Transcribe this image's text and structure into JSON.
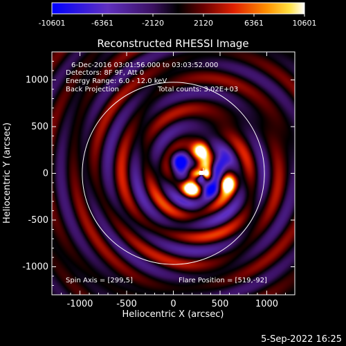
{
  "chart_data": {
    "type": "heatmap",
    "title": "Reconstructed RHESSI Image",
    "xlabel": "Heliocentric X (arcsec)",
    "ylabel": "Heliocentric Y (arcsec)",
    "xlim": [
      -1300,
      1300
    ],
    "ylim": [
      -1300,
      1300
    ],
    "xticks": [
      -1000,
      -500,
      0,
      500,
      1000
    ],
    "yticks": [
      -1000,
      -500,
      0,
      500,
      1000
    ],
    "colorbar": {
      "range": [
        -10601,
        10601
      ],
      "ticks": [
        "-10601",
        "-6361",
        "-2120",
        "2120",
        "6361",
        "10601"
      ],
      "colormap": "blue-purple-black-red-orange-yellow-white"
    },
    "annotations": {
      "time_range": "6-Dec-2016 03:01:56.000 to 03:03:52.000",
      "detectors": "Detectors: 8F 9F, Att 0",
      "energy": "Energy Range: 6.0 - 12.0 keV",
      "method": "Back Projection",
      "counts": "Total counts: 3.02E+03",
      "spin_axis": "Spin Axis = [299,5]",
      "flare_position": "Flare Position = [519,-92]"
    },
    "spin_axis": [
      299,
      5
    ],
    "flare_position": [
      519,
      -92
    ],
    "solar_limb_radius": 975,
    "blue_lobes": [
      [
        60,
        140
      ],
      [
        490,
        100
      ],
      [
        360,
        -170
      ]
    ],
    "bright_lobes": [
      [
        290,
        240
      ],
      [
        570,
        -110
      ],
      [
        190,
        -150
      ],
      [
        340,
        50
      ]
    ],
    "grid": false
  },
  "footer": {
    "date": "5-Sep-2022 16:25"
  },
  "colors": {
    "background": "#000000",
    "foreground": "#ffffff"
  }
}
